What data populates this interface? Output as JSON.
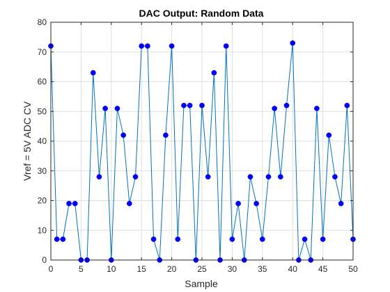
{
  "chart_data": {
    "type": "line",
    "title": "DAC Output: Random Data",
    "xlabel": "Sample",
    "ylabel": "Vref = 5V ADC CV",
    "xlim": [
      0,
      50
    ],
    "ylim": [
      0,
      80
    ],
    "xticks": [
      0,
      5,
      10,
      15,
      20,
      25,
      30,
      35,
      40,
      45,
      50
    ],
    "yticks": [
      0,
      10,
      20,
      30,
      40,
      50,
      60,
      70,
      80
    ],
    "grid": true,
    "legend": "none",
    "line_color": "#0072bd",
    "marker_color": "#0000ff",
    "x": [
      0,
      1,
      2,
      3,
      4,
      5,
      6,
      7,
      8,
      9,
      10,
      11,
      12,
      13,
      14,
      15,
      16,
      17,
      18,
      19,
      20,
      21,
      22,
      23,
      24,
      25,
      26,
      27,
      28,
      29,
      30,
      31,
      32,
      33,
      34,
      35,
      36,
      37,
      38,
      39,
      40,
      41,
      42,
      43,
      44,
      45,
      46,
      47,
      48,
      49,
      50
    ],
    "y": [
      72,
      7,
      7,
      19,
      19,
      0,
      0,
      63,
      28,
      51,
      0,
      51,
      42,
      19,
      28,
      72,
      72,
      7,
      0,
      42,
      72,
      7,
      52,
      52,
      0,
      52,
      28,
      63,
      0,
      72,
      7,
      19,
      0,
      28,
      19,
      7,
      28,
      51,
      28,
      52,
      73,
      0,
      7,
      0,
      51,
      7,
      42,
      28,
      19,
      52,
      7
    ]
  }
}
